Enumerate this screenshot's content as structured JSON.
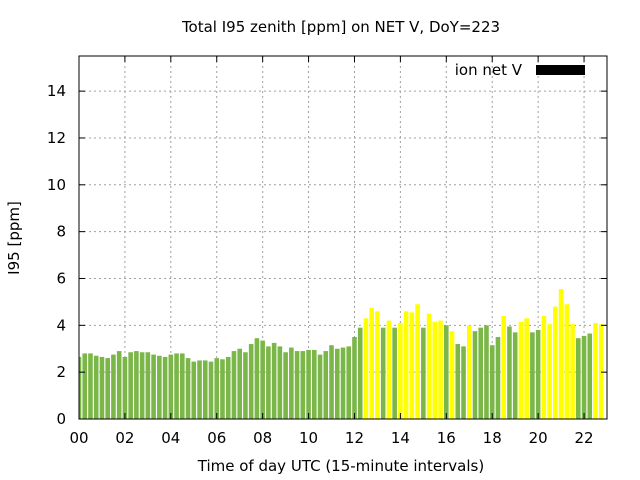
{
  "chart_data": {
    "type": "bar",
    "title": "Total I95 zenith [ppm] on NET V, DoY=223",
    "xlabel": "Time of day UTC (15-minute intervals)",
    "ylabel": "I95 [ppm]",
    "xlim": [
      0,
      23
    ],
    "ylim": [
      0,
      15.5
    ],
    "xticks": [
      0,
      2,
      4,
      6,
      8,
      10,
      12,
      14,
      16,
      18,
      20,
      22
    ],
    "xtick_labels": [
      "00",
      "02",
      "04",
      "06",
      "08",
      "10",
      "12",
      "14",
      "16",
      "18",
      "20",
      "22"
    ],
    "yticks": [
      0,
      2,
      4,
      6,
      8,
      10,
      12,
      14
    ],
    "ytick_labels": [
      "0",
      "2",
      "4",
      "6",
      "8",
      "10",
      "12",
      "14"
    ],
    "grid": true,
    "legend": {
      "position": "top-right",
      "label": "ion net V",
      "color": "#000000"
    },
    "colors": {
      "green": "#7ab648",
      "yellow": "#ffff00"
    },
    "interval_hours": 0.25,
    "values": [
      2.65,
      2.8,
      2.8,
      2.7,
      2.65,
      2.6,
      2.75,
      2.9,
      2.65,
      2.85,
      2.9,
      2.85,
      2.85,
      2.75,
      2.7,
      2.65,
      2.75,
      2.8,
      2.8,
      2.6,
      2.45,
      2.5,
      2.5,
      2.45,
      2.6,
      2.55,
      2.65,
      2.9,
      3.0,
      2.85,
      3.2,
      3.45,
      3.35,
      3.1,
      3.25,
      3.1,
      2.85,
      3.05,
      2.9,
      2.9,
      2.95,
      2.95,
      2.75,
      2.9,
      3.15,
      3.0,
      3.05,
      3.1,
      3.5,
      3.9,
      4.3,
      4.75,
      4.6,
      3.9,
      4.2,
      3.9,
      4.1,
      4.6,
      4.55,
      4.9,
      3.9,
      4.5,
      4.15,
      4.2,
      4.0,
      3.75,
      3.2,
      3.1,
      4.0,
      3.75,
      3.9,
      4.0,
      3.15,
      3.5,
      4.4,
      3.95,
      3.7,
      4.15,
      4.3,
      3.7,
      3.8,
      4.4,
      4.05,
      4.8,
      5.55,
      4.9,
      4.05,
      3.45,
      3.55,
      3.65,
      4.1,
      4.05
    ],
    "bar_colors": [
      "green",
      "green",
      "green",
      "green",
      "green",
      "green",
      "green",
      "green",
      "green",
      "green",
      "green",
      "green",
      "green",
      "green",
      "green",
      "green",
      "green",
      "green",
      "green",
      "green",
      "green",
      "green",
      "green",
      "green",
      "green",
      "green",
      "green",
      "green",
      "green",
      "green",
      "green",
      "green",
      "green",
      "green",
      "green",
      "green",
      "green",
      "green",
      "green",
      "green",
      "green",
      "green",
      "green",
      "green",
      "green",
      "green",
      "green",
      "green",
      "green",
      "green",
      "yellow",
      "yellow",
      "yellow",
      "green",
      "yellow",
      "green",
      "yellow",
      "yellow",
      "yellow",
      "yellow",
      "green",
      "yellow",
      "yellow",
      "yellow",
      "green",
      "yellow",
      "green",
      "green",
      "yellow",
      "green",
      "green",
      "green",
      "green",
      "green",
      "yellow",
      "green",
      "green",
      "yellow",
      "yellow",
      "green",
      "green",
      "yellow",
      "yellow",
      "yellow",
      "yellow",
      "yellow",
      "yellow",
      "green",
      "green",
      "green",
      "yellow",
      "yellow"
    ]
  }
}
